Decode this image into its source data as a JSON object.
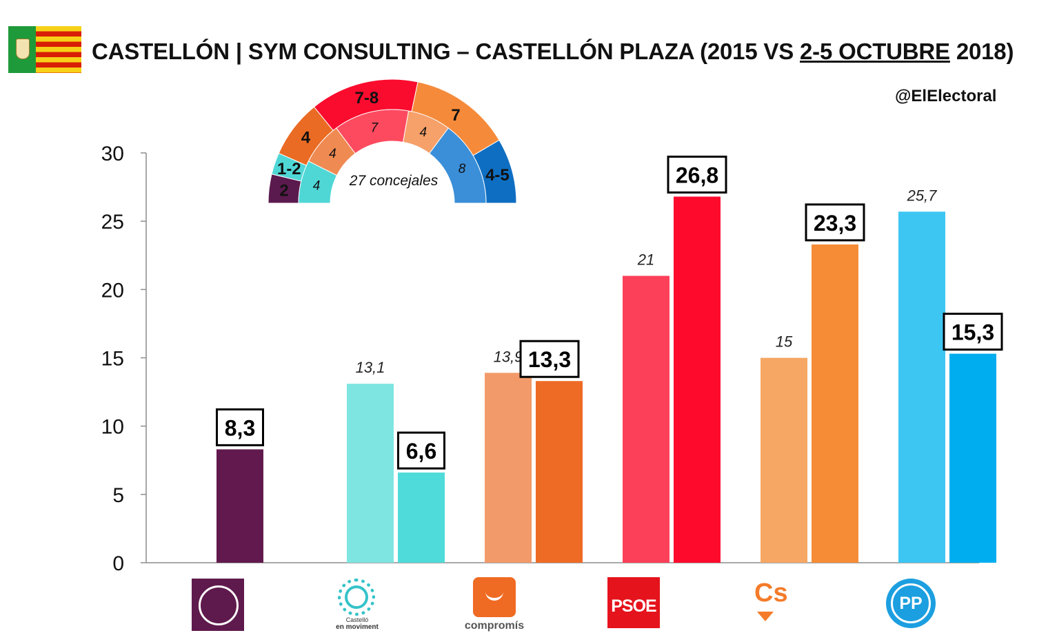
{
  "header": {
    "title_prefix": "CASTELLÓN | SYM CONSULTING – CASTELLÓN PLAZA (2015 VS ",
    "title_dates": "2-5 OCTUBRE",
    "title_suffix": " 2018)",
    "handle": "@ElElectoral"
  },
  "hemicycle": {
    "center_label": "27 concejales",
    "outer": [
      {
        "label": "2",
        "share": 2,
        "color": "#5b1a4e"
      },
      {
        "label": "1-2",
        "share": 1.5,
        "color": "#4fd7d6"
      },
      {
        "label": "4",
        "share": 4,
        "color": "#ea6b24"
      },
      {
        "label": "7-8",
        "share": 7.5,
        "color": "#fa0c2e"
      },
      {
        "label": "7",
        "share": 7,
        "color": "#f58b3a"
      },
      {
        "label": "4-5",
        "share": 4.5,
        "color": "#0e6ec2"
      }
    ],
    "inner": [
      {
        "label": "4",
        "share": 4,
        "color": "#4fd7d6"
      },
      {
        "label": "4",
        "share": 4,
        "color": "#ef8a52"
      },
      {
        "label": "7",
        "share": 7,
        "color": "#fd4a5f"
      },
      {
        "label": "4",
        "share": 4,
        "color": "#f6a06a"
      },
      {
        "label": "8",
        "share": 8,
        "color": "#3b8fd8"
      }
    ]
  },
  "logos": {
    "compromis": "compromís",
    "psoe": "PSOE",
    "cs": "Cs",
    "pp": "PP",
    "cem_line1": "Castelló",
    "cem_line2": "en moviment"
  },
  "chart_data": {
    "type": "bar",
    "categories": [
      "Podemos",
      "Castelló en Moviment",
      "Compromís",
      "PSOE",
      "Cs",
      "PP"
    ],
    "ylim": [
      0,
      30
    ],
    "yticks": [
      0,
      5,
      10,
      15,
      20,
      25,
      30
    ],
    "grid": false,
    "series": [
      {
        "name": "2015",
        "values": [
          null,
          13.1,
          13.9,
          21,
          15,
          25.7
        ],
        "labels": [
          "",
          "13,1",
          "13,9",
          "21",
          "15",
          "25,7"
        ],
        "colors": [
          "#000000",
          "#7ee5e1",
          "#f39a6a",
          "#fd4059",
          "#f6a764",
          "#3ec6f2"
        ]
      },
      {
        "name": "2-5 octubre 2018",
        "values": [
          8.3,
          6.6,
          13.3,
          26.8,
          23.3,
          15.3
        ],
        "labels": [
          "8,3",
          "6,6",
          "13,3",
          "26,8",
          "23,3",
          "15,3"
        ],
        "colors": [
          "#621a4e",
          "#4fdbd9",
          "#ee6b25",
          "#fe0a2c",
          "#f68c35",
          "#00aeef"
        ]
      }
    ]
  }
}
